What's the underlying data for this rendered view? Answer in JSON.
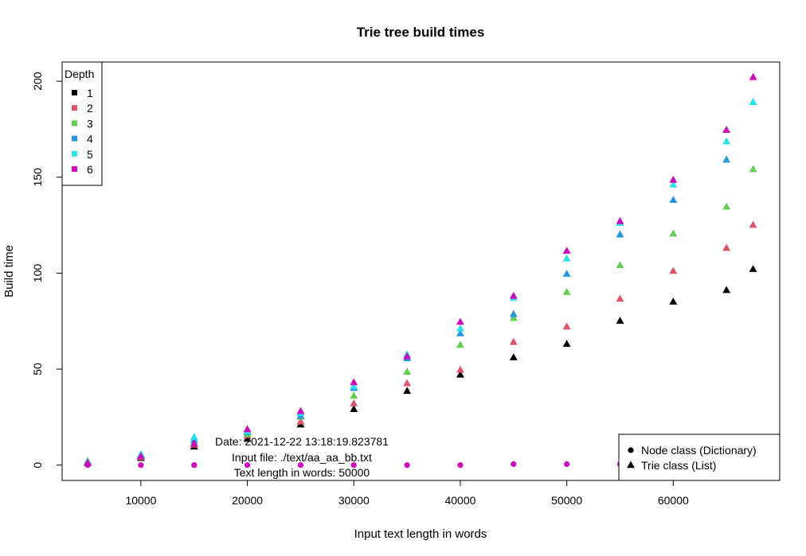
{
  "chart_data": {
    "type": "scatter",
    "title": "Trie tree build times",
    "xlabel": "Input text length in words",
    "ylabel": "Build time",
    "xlim": [
      2600,
      70000
    ],
    "ylim": [
      -8,
      210
    ],
    "xticks": [
      10000,
      20000,
      30000,
      40000,
      50000,
      60000
    ],
    "yticks": [
      0,
      50,
      100,
      150,
      200
    ],
    "grid": false,
    "x": [
      5000,
      10000,
      15000,
      20000,
      25000,
      30000,
      35000,
      40000,
      45000,
      50000,
      55000,
      60000,
      65000,
      67500
    ],
    "depth_legend": {
      "title": "Depth",
      "position": "top-left",
      "labels": [
        "1",
        "2",
        "3",
        "4",
        "5",
        "6"
      ],
      "colors": [
        "#000000",
        "#DF536B",
        "#61D04F",
        "#2297E6",
        "#28E2E5",
        "#CD0BBC"
      ]
    },
    "class_legend": {
      "position": "bottom-right",
      "entries": [
        {
          "label": "Node class (Dictionary)",
          "marker": "circle"
        },
        {
          "label": "Trie class (List)",
          "marker": "triangle"
        }
      ]
    },
    "series": [
      {
        "name": "1",
        "marker": "triangle",
        "color": "#000000",
        "values": [
          1,
          3.5,
          9.5,
          13.5,
          21,
          29,
          38.5,
          47,
          56,
          63,
          75,
          85,
          91,
          102
        ]
      },
      {
        "name": "2",
        "marker": "triangle",
        "color": "#DF536B",
        "values": [
          1,
          4,
          10.5,
          15,
          22.5,
          32,
          42.5,
          49.5,
          64,
          72,
          86.5,
          101,
          113,
          125
        ]
      },
      {
        "name": "3",
        "marker": "triangle",
        "color": "#61D04F",
        "values": [
          2,
          4.5,
          12,
          16,
          25,
          36,
          48.5,
          62.5,
          76.5,
          90,
          104,
          120.5,
          134.5,
          154
        ]
      },
      {
        "name": "4",
        "marker": "triangle",
        "color": "#2297E6",
        "values": [
          1.5,
          5,
          13,
          17,
          25.5,
          40,
          55.5,
          68.5,
          78.5,
          99.5,
          120,
          138,
          159,
          189
        ]
      },
      {
        "name": "5",
        "marker": "triangle",
        "color": "#28E2E5",
        "values": [
          1.5,
          5.5,
          14.5,
          17.5,
          27,
          41,
          57.5,
          71,
          87,
          107.5,
          126,
          146,
          168.5,
          189
        ]
      },
      {
        "name": "6",
        "marker": "triangle",
        "color": "#CD0BBC",
        "values": [
          1,
          4.5,
          11,
          18.5,
          28,
          43,
          56.5,
          74.5,
          88,
          111.5,
          127,
          148.5,
          174.5,
          202
        ]
      },
      {
        "name": "6",
        "marker": "circle",
        "color": "#CD0BBC",
        "values": [
          0,
          0,
          0,
          0,
          0,
          0,
          0,
          0,
          0.5,
          0.5,
          0.5,
          0.5,
          0.5,
          0.5
        ]
      }
    ]
  },
  "annotation": {
    "date": "Date: 2021-12-22 13:18:19.823781",
    "file": "Input file: ./text/aa_aa_bb.txt",
    "words": "Text length in words: 50000"
  }
}
